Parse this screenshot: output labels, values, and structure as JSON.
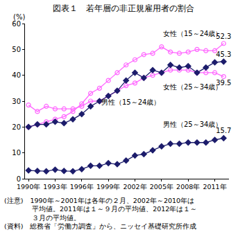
{
  "chart_data": {
    "type": "line",
    "title": "図表１　若年層の非正規雇用者の割合",
    "ylabel": "(%)",
    "x": [
      1990,
      1991,
      1992,
      1993,
      1994,
      1995,
      1996,
      1997,
      1998,
      1999,
      2000,
      2001,
      2002,
      2003,
      2004,
      2005,
      2006,
      2007,
      2008,
      2009,
      2010,
      2011,
      2012
    ],
    "xlim": [
      1989.6,
      2012.6
    ],
    "xticks": [
      {
        "value": 1990,
        "label": "1990年"
      },
      {
        "value": 1993,
        "label": "1993年"
      },
      {
        "value": 1996,
        "label": "1996年"
      },
      {
        "value": 1999,
        "label": "1999年"
      },
      {
        "value": 2002,
        "label": "2002年"
      },
      {
        "value": 2005,
        "label": "2005年"
      },
      {
        "value": 2008,
        "label": "2008年"
      },
      {
        "value": 2011,
        "label": "2011年"
      }
    ],
    "ylim": [
      0,
      60
    ],
    "yticks": [
      0,
      10,
      20,
      30,
      40,
      50,
      60
    ],
    "grid": false,
    "series": [
      {
        "name": "女性（15～24歳）",
        "color": "#ff66ff",
        "marker": "circle-open",
        "line_style": "solid",
        "values": [
          20,
          21,
          22,
          23,
          24,
          26,
          29,
          33,
          35,
          38,
          41,
          44,
          46,
          48,
          48.5,
          51,
          49,
          48.5,
          49,
          50,
          49.5,
          49.5,
          52.3
        ],
        "value_labels": [
          null,
          null,
          null,
          null,
          null,
          null,
          null,
          null,
          null,
          null,
          null,
          null,
          null,
          null,
          null,
          null,
          null,
          null,
          null,
          null,
          null,
          null,
          "52.3"
        ]
      },
      {
        "name": "女性（25～34歳）",
        "color": "#ff66ff",
        "marker": "circle-open",
        "line_style": "solid",
        "values": [
          28.5,
          26,
          28,
          27,
          27,
          27,
          28,
          30,
          30,
          32,
          34,
          36,
          37,
          39,
          40,
          41,
          42,
          42,
          42,
          41,
          41,
          41,
          39.5
        ],
        "value_labels": [
          null,
          null,
          null,
          null,
          null,
          null,
          null,
          null,
          null,
          null,
          null,
          null,
          null,
          null,
          null,
          null,
          null,
          null,
          null,
          null,
          null,
          null,
          "39.5"
        ]
      },
      {
        "name": "男性（15～24歳）",
        "color": "#1c1c6b",
        "marker": "diamond",
        "line_style": "solid",
        "values": [
          20,
          21,
          21,
          22,
          21.5,
          23,
          25,
          28,
          30,
          32,
          34,
          38,
          41,
          39,
          42,
          41,
          44,
          43,
          43.5,
          41,
          43,
          45,
          45.3
        ],
        "value_labels": [
          null,
          null,
          null,
          null,
          null,
          null,
          null,
          null,
          null,
          null,
          null,
          null,
          null,
          null,
          null,
          null,
          null,
          null,
          null,
          null,
          null,
          null,
          "45.3"
        ]
      },
      {
        "name": "男性（25～34歳）",
        "color": "#1c1c6b",
        "marker": "diamond",
        "line_style": "solid",
        "values": [
          3.2,
          3.0,
          2.9,
          3.5,
          3.0,
          2.9,
          3.7,
          5,
          5,
          6,
          5.6,
          7,
          9,
          9.5,
          11,
          12.5,
          13.5,
          13.5,
          14,
          14,
          14,
          15,
          15.7
        ],
        "value_labels": [
          null,
          null,
          null,
          null,
          null,
          null,
          null,
          null,
          null,
          null,
          null,
          null,
          null,
          null,
          null,
          null,
          null,
          null,
          null,
          null,
          null,
          null,
          "15.7"
        ]
      }
    ],
    "annotations": [
      {
        "text": "女性（15～24歳）",
        "x": 2008.5,
        "y": 56,
        "color": "#ff66ff"
      },
      {
        "text": "女性（25～34歳）",
        "x": 2008.5,
        "y": 35.5,
        "color": "#ff66ff"
      },
      {
        "text": "男性（15～24歳）",
        "x": 2001.5,
        "y": 29.5,
        "color": "#1c1c6b"
      },
      {
        "text": "男性（25～34歳）",
        "x": 2008.5,
        "y": 21,
        "color": "#1c1c6b"
      }
    ],
    "notes": [
      "(注意)　1990年～2001年は各年の２月、2002年～2010年は",
      "　　　　平均値。2011年は１～９月の平均値、2012年は１～",
      "　　　　３月の平均値。",
      "(資料)　総務省「労働力調査」から、ニッセイ基礎研究所作成"
    ]
  }
}
